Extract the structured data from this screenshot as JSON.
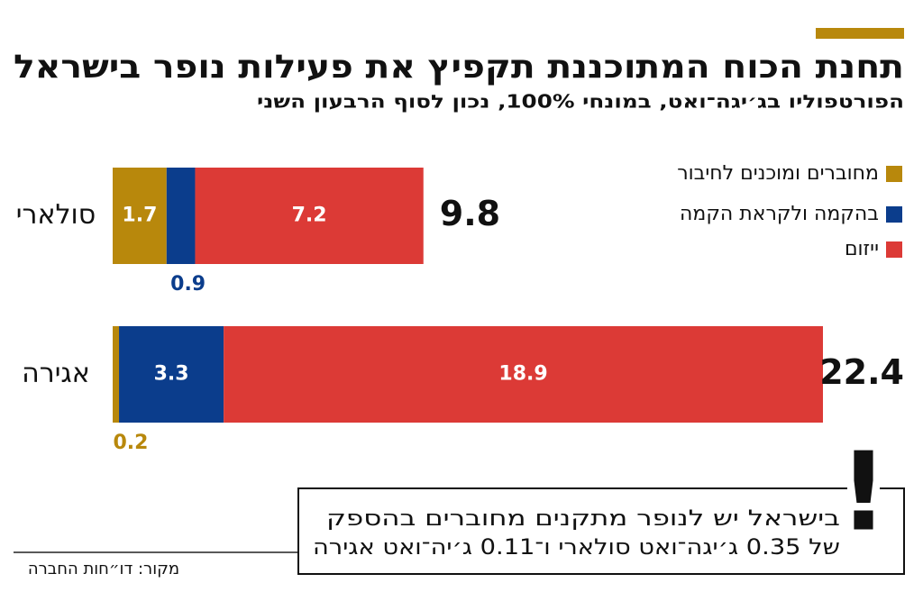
{
  "chart_data": {
    "type": "stacked-bar-horizontal",
    "title": "תחנת הכוח המתוכננת תקפיץ את פעילות נופר בישראל",
    "subtitle": "הפורטפוליו בג׳יגה־ואט, במונחי 100%, נכון לסוף הרבעון השני",
    "categories": [
      "סולארי",
      "אגירה"
    ],
    "series": [
      {
        "name": "מחוברים ומוכנים לחיבור",
        "color": "#b8880c",
        "values": [
          1.7,
          0.2
        ]
      },
      {
        "name": "בהקמה ולקראת הקמה",
        "color": "#0b3d8c",
        "values": [
          0.9,
          3.3
        ]
      },
      {
        "name": "ייזום",
        "color": "#dc3a36",
        "values": [
          7.2,
          18.9
        ]
      }
    ],
    "totals": [
      9.8,
      22.4
    ],
    "note": [
      "בישראל יש לנופר מתקנים מחוברים בהספק",
      "של 0.35 ג׳יגה־ואט סולארי ו־0.11 ג׳יה־ואט אגירה"
    ],
    "note_mark": "!",
    "source": "מקור: דו״חות החברה"
  }
}
